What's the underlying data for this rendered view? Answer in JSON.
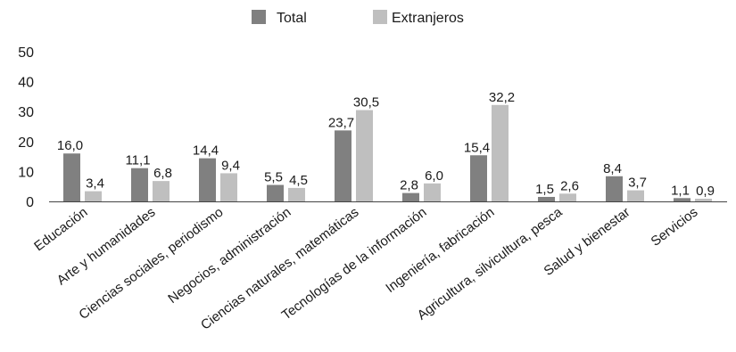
{
  "chart_data": {
    "type": "bar",
    "title": "",
    "xlabel": "",
    "ylabel": "",
    "ylim": [
      0,
      50
    ],
    "yticks": [
      0,
      10,
      20,
      30,
      40,
      50
    ],
    "grid": false,
    "legend_position": "top-center",
    "categories": [
      "Educación",
      "Arte y humanidades",
      "Ciencias sociales, periodismo",
      "Negocios, administración",
      "Ciencias naturales, matemáticas",
      "Tecnologías de la información",
      "Ingeniería, fabricación",
      "Agricultura, silvicultura, pesca",
      "Salud y bienestar",
      "Servicios"
    ],
    "series": [
      {
        "name": "Total",
        "color": "#808080",
        "values": [
          16.0,
          11.1,
          14.4,
          5.5,
          23.7,
          2.8,
          15.4,
          1.5,
          8.4,
          1.1
        ],
        "labels": [
          "16,0",
          "11,1",
          "14,4",
          "5,5",
          "23,7",
          "2,8",
          "15,4",
          "1,5",
          "8,4",
          "1,1"
        ]
      },
      {
        "name": "Extranjeros",
        "color": "#bfbfbf",
        "values": [
          3.4,
          6.8,
          9.4,
          4.5,
          30.5,
          6.0,
          32.2,
          2.6,
          3.7,
          0.9
        ],
        "labels": [
          "3,4",
          "6,8",
          "9,4",
          "4,5",
          "30,5",
          "6,0",
          "32,2",
          "2,6",
          "3,7",
          "0,9"
        ]
      }
    ]
  }
}
